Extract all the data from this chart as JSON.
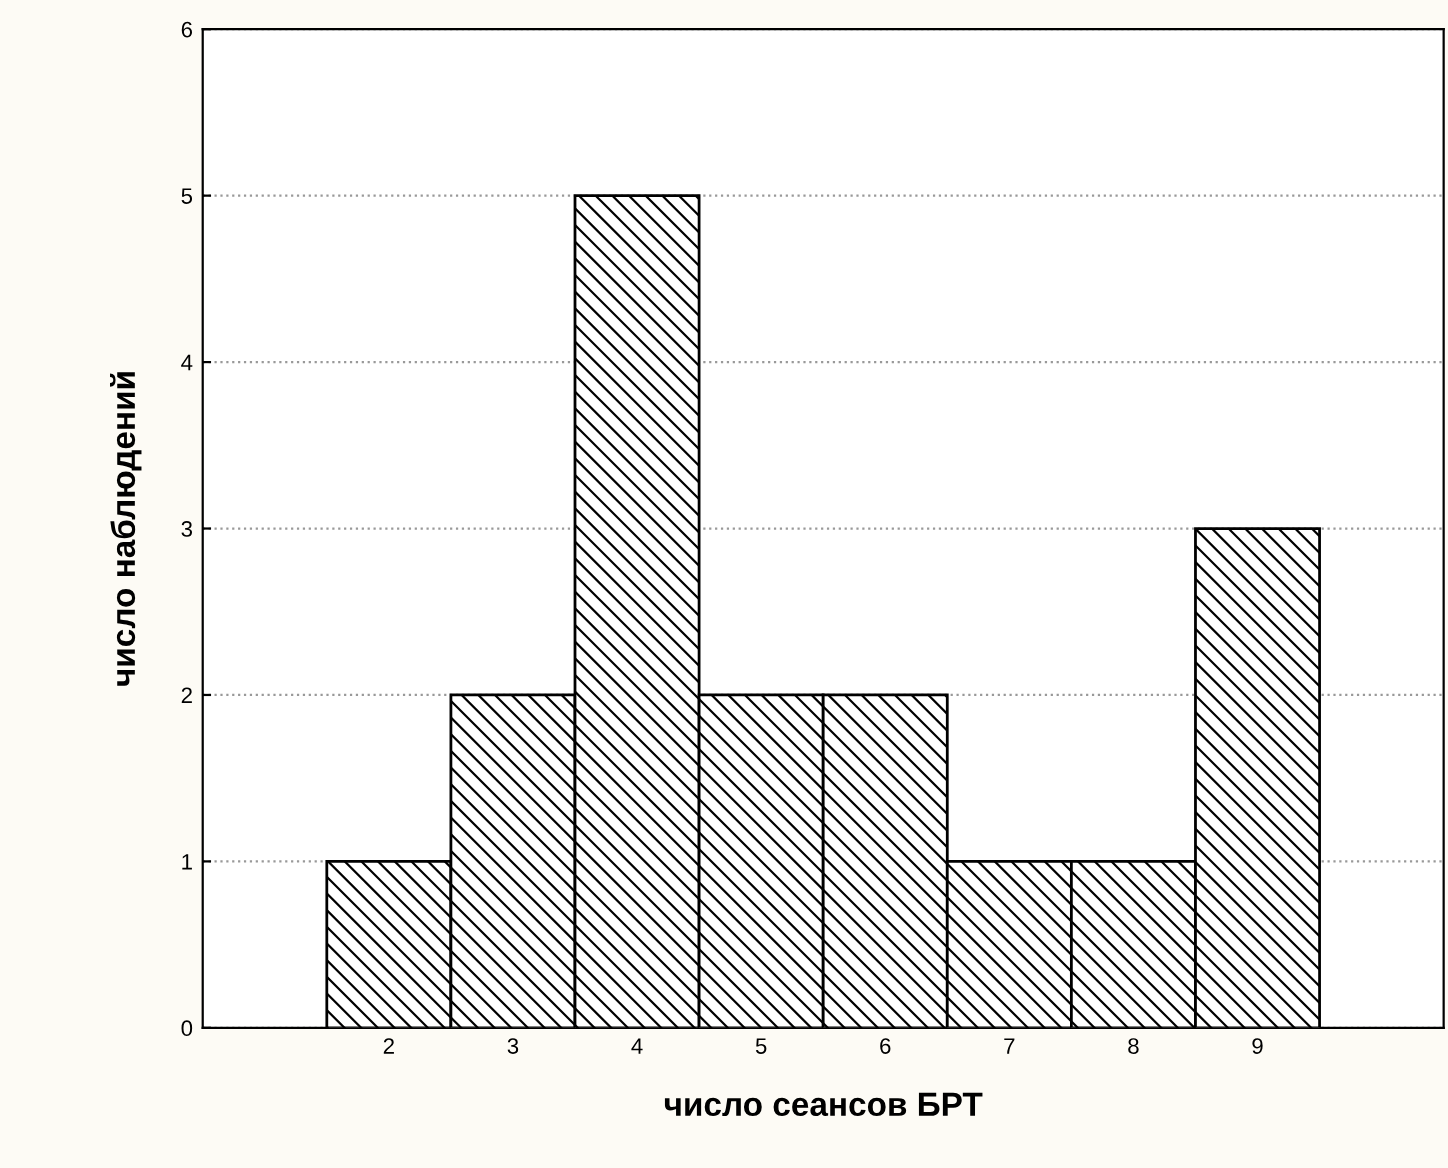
{
  "chart_data": {
    "type": "bar",
    "xlabel": "число сеансов БРТ",
    "ylabel": "число наблюдений",
    "categories": [
      "2",
      "3",
      "4",
      "5",
      "6",
      "7",
      "8",
      "9"
    ],
    "values": [
      1,
      2,
      5,
      2,
      2,
      1,
      1,
      3
    ],
    "color": "#000000",
    "ylim": [
      0,
      6
    ],
    "yticks": [
      0,
      1,
      2,
      3,
      4,
      5,
      6
    ],
    "grid": "y"
  }
}
